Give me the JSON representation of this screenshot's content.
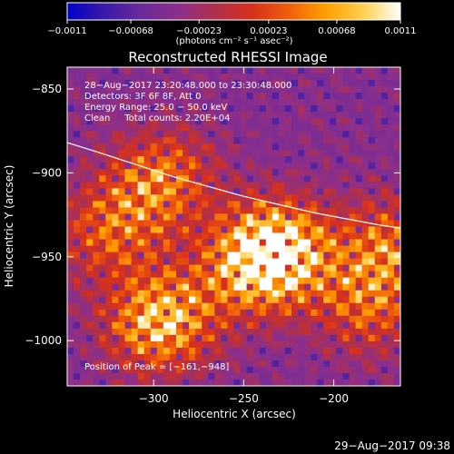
{
  "chart_data": {
    "type": "heatmap",
    "title": "Reconstructed RHESSI Image",
    "xlabel": "Heliocentric X (arcsec)",
    "ylabel": "Heliocentric Y (arcsec)",
    "xlim": [
      -348,
      -163
    ],
    "ylim": [
      -1027,
      -837
    ],
    "x_ticks": [
      -300,
      -250,
      -200
    ],
    "x_tick_labels": [
      "−300",
      "−250",
      "−200"
    ],
    "y_ticks": [
      -850,
      -900,
      -950,
      -1000
    ],
    "y_tick_labels": [
      "−850",
      "−900",
      "−950",
      "−1000"
    ],
    "colorbar": {
      "min": -0.0011,
      "max": 0.0011,
      "ticks": [
        -0.0011,
        -0.00068,
        -0.00023,
        0.00023,
        0.00068,
        0.0011
      ],
      "tick_labels": [
        "−0.0011",
        "−0.00068",
        "−0.00023",
        "0.00023",
        "0.00068",
        "0.0011"
      ],
      "units": "(photons cm⁻² s⁻¹ asec⁻²)",
      "colors": [
        "#0000c8",
        "#3a1aa8",
        "#6a2a9a",
        "#8c2f8c",
        "#b0304a",
        "#d8301c",
        "#f0600a",
        "#ffa000",
        "#ffd050",
        "#ffffff"
      ]
    },
    "annotations": {
      "time_range": "28−Aug−2017 23:20:48.000 to 23:30:48.000",
      "detectors": "Detectors: 3F 6F 8F, Att 0",
      "energy_range": "Energy Range: 25.0 − 50.0 keV",
      "clean": "Clean     Total counts: 2.20E+04",
      "peak": "Position of Peak = [−161,−948]"
    },
    "limb_curve": {
      "x": [
        -348,
        -330,
        -310,
        -290,
        -270,
        -250,
        -230,
        -210,
        -190,
        -175,
        -163
      ],
      "y": [
        -882,
        -888,
        -895,
        -902,
        -908,
        -914,
        -919,
        -924,
        -928,
        -931,
        -933
      ]
    },
    "bright_sources": [
      {
        "x": -296,
        "y": -988,
        "amp": 1.0
      },
      {
        "x": -244,
        "y": -955,
        "amp": 0.9
      },
      {
        "x": -228,
        "y": -945,
        "amp": 0.85
      },
      {
        "x": -296,
        "y": -905,
        "amp": 0.7
      },
      {
        "x": -180,
        "y": -978,
        "amp": 0.55
      },
      {
        "x": -325,
        "y": -935,
        "amp": 0.55
      },
      {
        "x": -170,
        "y": -945,
        "amp": 0.6
      }
    ]
  },
  "footer": {
    "timestamp": "29−Aug−2017 09:38"
  }
}
